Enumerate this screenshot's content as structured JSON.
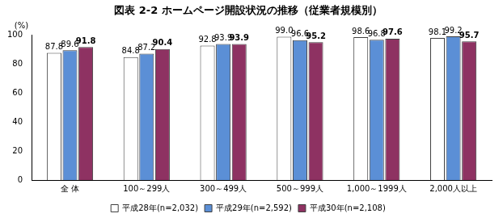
{
  "chart_data": {
    "type": "bar",
    "title": "図表 2-2 ホームページ開設状況の推移（従業者規模別）",
    "y_label": "(%)",
    "categories": [
      "全 体",
      "100～299人",
      "300～499人",
      "500～999人",
      "1,000～1999人",
      "2,000人以上"
    ],
    "series": [
      {
        "name": "平成28年(n=2,032)",
        "color": "#ffffff",
        "values": [
          87.8,
          84.8,
          92.8,
          99.0,
          98.6,
          98.1
        ],
        "value_labels": [
          "87.8",
          "84.8",
          "92.8",
          "99.0",
          "98.6",
          "98.1"
        ]
      },
      {
        "name": "平成29年(n=2,592)",
        "color": "#5b8fd6",
        "values": [
          89.6,
          87.2,
          93.9,
          96.6,
          96.8,
          99.2
        ]
      },
      {
        "name": "平成30年(n=2,108)",
        "color": "#8e3262",
        "values": [
          91.8,
          90.4,
          93.9,
          95.2,
          97.6,
          95.7
        ]
      }
    ],
    "ylim": [
      0,
      100
    ],
    "yticks": [
      0,
      20,
      40,
      60,
      80,
      100
    ],
    "grid": false,
    "legend": "bottom",
    "data_labels": true
  }
}
